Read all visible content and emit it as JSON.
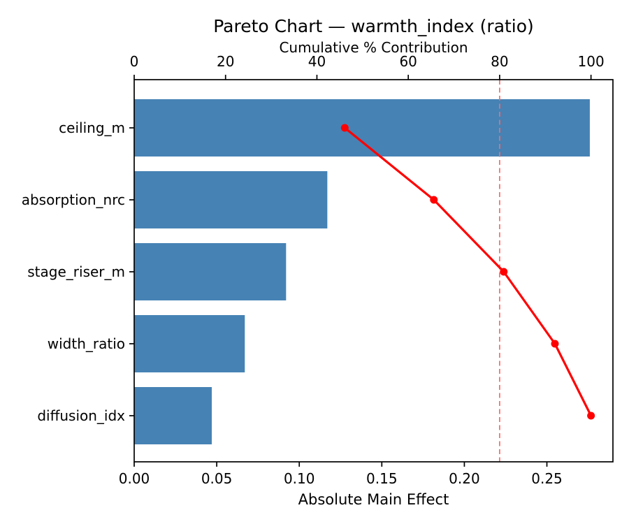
{
  "chart_data": {
    "type": "bar",
    "subtype": "pareto",
    "orientation": "horizontal",
    "title": "Pareto Chart — warmth_index (ratio)",
    "xlabel": "Absolute Main Effect",
    "categories": [
      "ceiling_m",
      "absorption_nrc",
      "stage_riser_m",
      "width_ratio",
      "diffusion_idx"
    ],
    "series": [
      {
        "name": "Absolute Main Effect",
        "values": [
          0.276,
          0.117,
          0.092,
          0.067,
          0.047
        ]
      },
      {
        "name": "Cumulative % Contribution",
        "values": [
          46.1,
          65.6,
          80.9,
          92.1,
          100.0
        ]
      }
    ],
    "threshold_pct": 80,
    "bottom_axis": {
      "label": "Absolute Main Effect",
      "tick_labels": [
        "0.00",
        "0.05",
        "0.10",
        "0.15",
        "0.20",
        "0.25"
      ],
      "tick_values": [
        0,
        0.05,
        0.1,
        0.15,
        0.2,
        0.25
      ],
      "min": 0,
      "max": 0.29
    },
    "top_axis": {
      "label": "Cumulative % Contribution",
      "tick_labels": [
        "0",
        "20",
        "40",
        "60",
        "80",
        "100"
      ],
      "tick_values": [
        0,
        20,
        40,
        60,
        80,
        100
      ],
      "min": 0,
      "max": 104.8
    },
    "legend": "none",
    "grid": false,
    "colors": {
      "bar": "#4682B4",
      "line": "#FF0000",
      "marker": "#FF0000",
      "threshold_line": "#FF6666",
      "spine": "#000000",
      "text": "#000000",
      "background": "#FFFFFF"
    }
  }
}
